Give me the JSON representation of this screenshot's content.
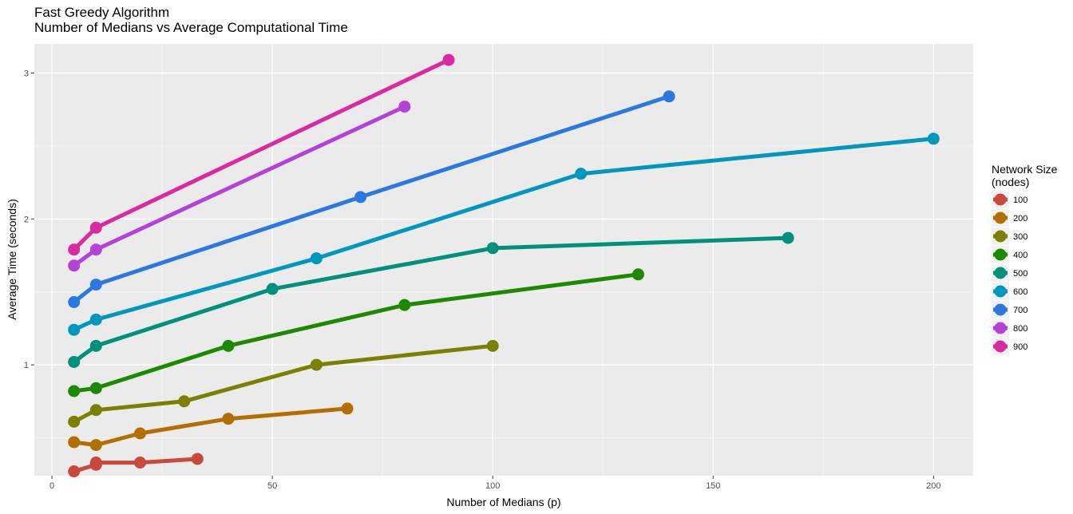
{
  "chart_data": {
    "type": "line",
    "title": "Fast Greedy Algorithm",
    "subtitle": "Number of Medians vs Average Computational Time",
    "xlabel": "Number of Medians (p)",
    "ylabel": "Average Time (seconds)",
    "xlim": [
      -4,
      209
    ],
    "ylim": [
      0.24,
      3.2
    ],
    "x_ticks": [
      0,
      50,
      100,
      150,
      200
    ],
    "y_ticks": [
      1,
      2,
      3
    ],
    "grid": true,
    "legend": {
      "title_line1": "Network Size",
      "title_line2": "(nodes)",
      "position": "right"
    },
    "series": [
      {
        "name": "100",
        "color": "#C9493F",
        "x": [
          5,
          10,
          10,
          20,
          33
        ],
        "y": [
          0.27,
          0.315,
          0.33,
          0.33,
          0.355
        ]
      },
      {
        "name": "200",
        "color": "#B26F00",
        "x": [
          5,
          10,
          20,
          40,
          67
        ],
        "y": [
          0.47,
          0.45,
          0.53,
          0.63,
          0.7
        ]
      },
      {
        "name": "300",
        "color": "#7A8000",
        "x": [
          5,
          10,
          30,
          60,
          100
        ],
        "y": [
          0.61,
          0.69,
          0.75,
          1.0,
          1.13
        ]
      },
      {
        "name": "400",
        "color": "#1B8A00",
        "x": [
          5,
          10,
          40,
          80,
          133
        ],
        "y": [
          0.82,
          0.84,
          1.13,
          1.41,
          1.62
        ]
      },
      {
        "name": "500",
        "color": "#00907B",
        "x": [
          5,
          10,
          50,
          100,
          167
        ],
        "y": [
          1.02,
          1.13,
          1.52,
          1.8,
          1.87
        ]
      },
      {
        "name": "600",
        "color": "#0097BF",
        "x": [
          5,
          10,
          60,
          120,
          200
        ],
        "y": [
          1.24,
          1.31,
          1.73,
          2.31,
          2.55
        ]
      },
      {
        "name": "700",
        "color": "#2979E0",
        "x": [
          5,
          10,
          70,
          140
        ],
        "y": [
          1.43,
          1.55,
          2.15,
          2.84
        ]
      },
      {
        "name": "800",
        "color": "#B442D9",
        "x": [
          5,
          10,
          80
        ],
        "y": [
          1.68,
          1.79,
          2.77
        ]
      },
      {
        "name": "900",
        "color": "#D92AA1",
        "x": [
          5,
          10,
          90
        ],
        "y": [
          1.79,
          1.94,
          3.09
        ]
      }
    ]
  }
}
